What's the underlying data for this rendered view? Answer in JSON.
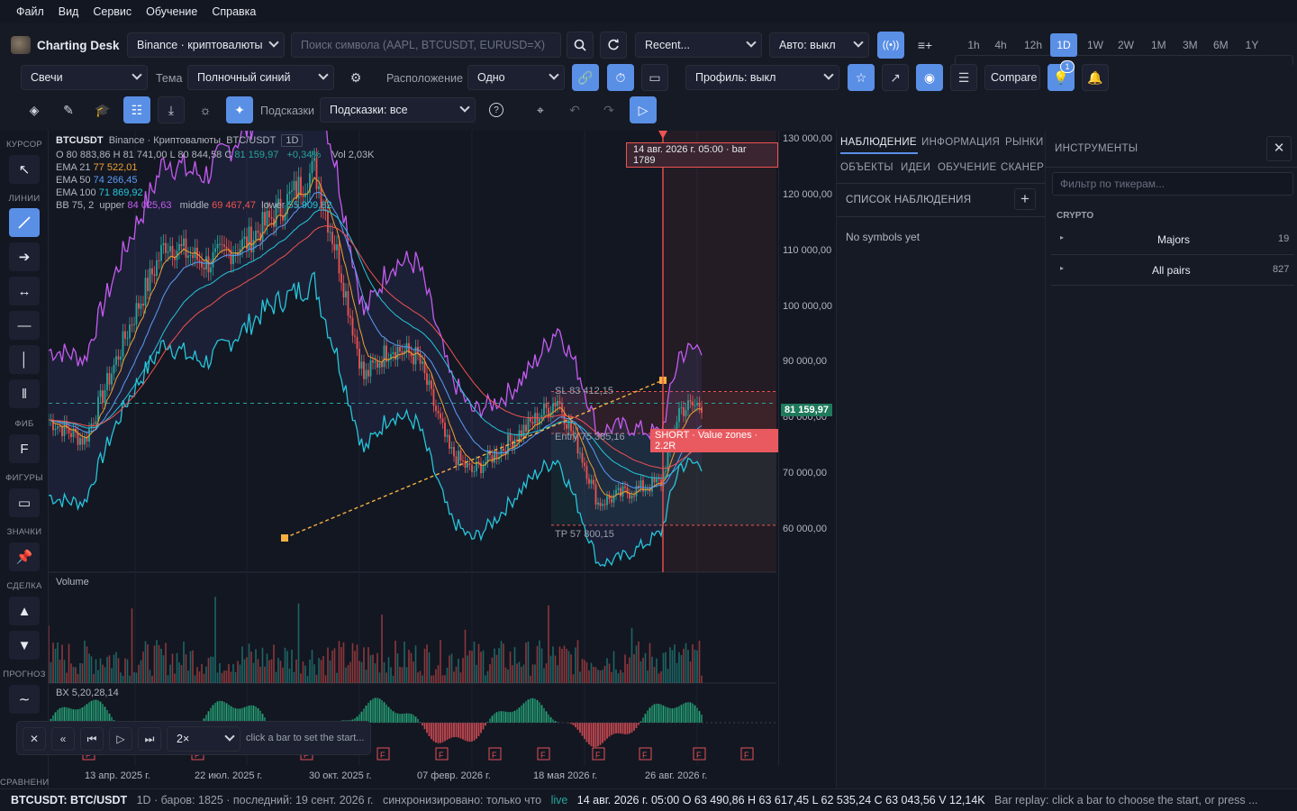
{
  "menu": [
    "Файл",
    "Вид",
    "Сервис",
    "Обучение",
    "Справка"
  ],
  "app": {
    "title": "Charting Desk"
  },
  "toolbar1": {
    "exchange": "Binance · криптовалюты",
    "search_placeholder": "Поиск символа (AAPL, BTCUSDT, EURUSD=X)",
    "recent": "Recent...",
    "auto": "Авто: выкл",
    "timeframes": [
      "1h",
      "4h",
      "12h",
      "1D",
      "1W",
      "2W",
      "1M",
      "3M",
      "6M",
      "1Y"
    ],
    "active_tf": "1D"
  },
  "toolbar2": {
    "chart_type": "Свечи",
    "theme_label": "Тема",
    "theme": "Полночный синий",
    "layout_label": "Расположение",
    "layout": "Одно",
    "profile": "Профиль: выкл",
    "compare": "Compare",
    "badge": "1"
  },
  "toolbar3": {
    "hints_label": "Подсказки",
    "hints": "Подсказки: все"
  },
  "tools": {
    "sections": [
      "КУРСОР",
      "ЛИНИИ",
      "ФИБ",
      "ФИГУРЫ",
      "ЗНАЧКИ",
      "СДЕЛКА",
      "ПРОГНОЗ",
      "СРАВНЕНИЕ"
    ],
    "fib_glyph": "F"
  },
  "legend": {
    "symbol": "BTCUSDT",
    "exchange": "Binance · Криптовалюты",
    "pair": "BTC/USDT",
    "tf": "1D",
    "ohlc": "O 80 883,86   H 81 741,00   L 80 844,58   C",
    "close": "81 159,97",
    "change": "+0,34%",
    "vol": "Vol 2,03K",
    "ema21_label": "EMA 21",
    "ema21": "77 522,01",
    "ema50_label": "EMA 50",
    "ema50": "74 266,45",
    "ema100_label": "EMA 100",
    "ema100": "71 869,92",
    "bb_label": "BB 75, 2",
    "bb_upper_label": "upper",
    "bb_upper": "84 025,63",
    "bb_middle_label": "middle",
    "bb_middle": "69 467,47",
    "bb_lower_label": "lower",
    "bb_lower": "55 909,82"
  },
  "chart": {
    "crosshair_label": "14 авг. 2026 г. 05:00 · bar 1789",
    "sl": "SL 83 412,15",
    "entry": "Entry 75 385,16",
    "tp": "TP 57 800,15",
    "trade": "SHORT · Value zones · 2.2R",
    "last_price": "81 159,97",
    "volume_label": "Volume",
    "bx_label": "BX 5,20,28,14",
    "price_ticks": [
      "130 000,00",
      "120 000,00",
      "110 000,00",
      "100 000,00",
      "90 000,00",
      "80 000,00",
      "70 000,00",
      "60 000,00"
    ],
    "time_ticks": [
      "13 апр. 2025 г.",
      "22 июл. 2025 г.",
      "30 окт. 2025 г.",
      "07 февр. 2026 г.",
      "18 мая 2026 г.",
      "26 авг. 2026 г."
    ],
    "fmarker": "F"
  },
  "chart_data": {
    "type": "line",
    "symbol": "BTCUSDT",
    "timeframe": "1D",
    "x": [
      "13 апр. 2025 г.",
      "22 июл. 2025 г.",
      "30 окт. 2025 г.",
      "07 февр. 2026 г.",
      "18 мая 2026 г.",
      "26 авг. 2026 г."
    ],
    "series": [
      {
        "name": "BTCUSDT",
        "values": [
          80000,
          118000,
          110000,
          72000,
          62000,
          80000
        ]
      }
    ],
    "ylim": [
      50000,
      132000
    ],
    "levels": {
      "sl": 83412.15,
      "entry": 75385.16,
      "tp": 57800.15,
      "last": 81159.97
    }
  },
  "replay": {
    "speed": "2×",
    "hint": "click a bar to set the start..."
  },
  "watch": {
    "tabs_row1": [
      "НАБЛЮДЕНИЕ",
      "ИНФОРМАЦИЯ",
      "РЫНКИ"
    ],
    "tabs_row2": [
      "ОБЪЕКТЫ",
      "ИДЕИ",
      "ОБУЧЕНИЕ",
      "СКАНЕР"
    ],
    "list_title": "СПИСОК НАБЛЮДЕНИЯ",
    "empty": "No symbols yet"
  },
  "instruments": {
    "title": "ИНСТРУМЕНТЫ",
    "filter_placeholder": "Фильтр по тикерам...",
    "group": "CRYPTO",
    "items": [
      {
        "label": "Majors",
        "count": "19"
      },
      {
        "label": "All pairs",
        "count": "827"
      }
    ]
  },
  "status": {
    "symbol": "BTCUSDT: BTC/USDT",
    "info": "1D · баров: 1825 · последний: 19 сент. 2026 г.",
    "sync": "синхронизировано: только что",
    "live": "live",
    "bar": "14 авг. 2026 г. 05:00 O 63 490,86 H 63 617,45 L 62 535,24 C 63 043,56 V 12,14K",
    "replay": "Bar replay: click a bar to choose the start, or press ..."
  },
  "colors": {
    "accent": "#5a8fe6",
    "bull": "#26a69a",
    "bear": "#ef5350",
    "ema21": "#f0a030",
    "ema50": "#5b9cf5",
    "ema100": "#26c6da",
    "bb": "#c45cf0"
  }
}
